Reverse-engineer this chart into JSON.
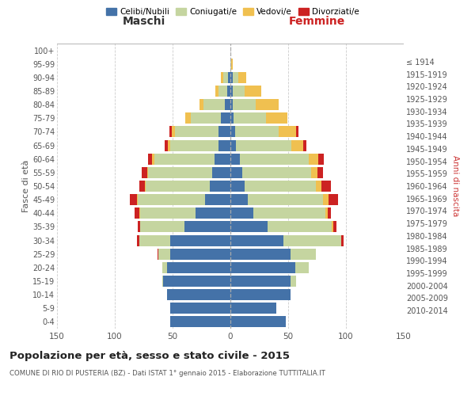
{
  "age_groups": [
    "0-4",
    "5-9",
    "10-14",
    "15-19",
    "20-24",
    "25-29",
    "30-34",
    "35-39",
    "40-44",
    "45-49",
    "50-54",
    "55-59",
    "60-64",
    "65-69",
    "70-74",
    "75-79",
    "80-84",
    "85-89",
    "90-94",
    "95-99",
    "100+"
  ],
  "birth_years": [
    "2010-2014",
    "2005-2009",
    "2000-2004",
    "1995-1999",
    "1990-1994",
    "1985-1989",
    "1980-1984",
    "1975-1979",
    "1970-1974",
    "1965-1969",
    "1960-1964",
    "1955-1959",
    "1950-1954",
    "1945-1949",
    "1940-1944",
    "1935-1939",
    "1930-1934",
    "1925-1929",
    "1920-1924",
    "1915-1919",
    "≤ 1914"
  ],
  "males": {
    "celibe": [
      52,
      52,
      55,
      58,
      55,
      52,
      52,
      40,
      30,
      22,
      18,
      16,
      14,
      10,
      10,
      8,
      5,
      3,
      2,
      0,
      0
    ],
    "coniugato": [
      0,
      0,
      0,
      1,
      4,
      10,
      27,
      38,
      48,
      58,
      55,
      55,
      52,
      42,
      38,
      26,
      18,
      7,
      4,
      0,
      0
    ],
    "vedovo": [
      0,
      0,
      0,
      0,
      0,
      0,
      0,
      0,
      1,
      1,
      1,
      1,
      2,
      2,
      3,
      5,
      4,
      3,
      2,
      0,
      0
    ],
    "divorziato": [
      0,
      0,
      0,
      0,
      0,
      1,
      2,
      2,
      4,
      6,
      5,
      5,
      3,
      3,
      2,
      0,
      0,
      0,
      0,
      0,
      0
    ]
  },
  "females": {
    "nubile": [
      48,
      40,
      52,
      52,
      56,
      52,
      46,
      32,
      20,
      15,
      12,
      10,
      8,
      5,
      4,
      3,
      2,
      2,
      2,
      0,
      0
    ],
    "coniugata": [
      0,
      0,
      0,
      5,
      12,
      22,
      50,
      56,
      62,
      65,
      62,
      60,
      60,
      48,
      38,
      28,
      20,
      10,
      5,
      1,
      0
    ],
    "vedova": [
      0,
      0,
      0,
      0,
      0,
      0,
      0,
      1,
      2,
      5,
      5,
      5,
      8,
      10,
      15,
      18,
      20,
      15,
      7,
      1,
      0
    ],
    "divorziata": [
      0,
      0,
      0,
      0,
      0,
      0,
      2,
      3,
      3,
      8,
      8,
      5,
      5,
      3,
      2,
      0,
      0,
      0,
      0,
      0,
      0
    ]
  },
  "colors": {
    "celibe": "#4472a8",
    "coniugato": "#c5d5a0",
    "vedovo": "#f0c050",
    "divorziato": "#cc2222"
  },
  "title": "Popolazione per età, sesso e stato civile - 2015",
  "subtitle": "COMUNE DI RIO DI PUSTERIA (BZ) - Dati ISTAT 1° gennaio 2015 - Elaborazione TUTTITALIA.IT",
  "xlabel_left": "Maschi",
  "xlabel_right": "Femmine",
  "ylabel_left": "Fasce di età",
  "ylabel_right": "Anni di nascita",
  "xlim": 150,
  "bg_color": "#ffffff",
  "grid_color": "#cccccc"
}
